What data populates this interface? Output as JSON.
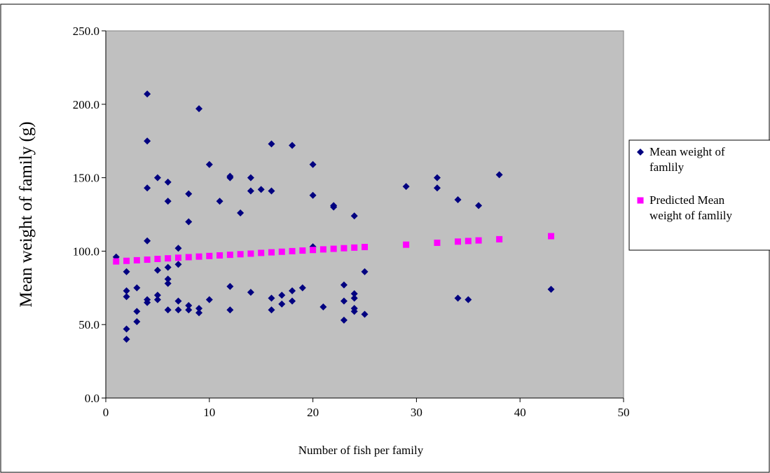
{
  "chart_data": {
    "type": "scatter",
    "title": "",
    "xlabel": "Number of fish per family",
    "ylabel": "Mean weight of family (g)",
    "xlim": [
      0,
      50
    ],
    "ylim": [
      0,
      250
    ],
    "xticks": [
      "0",
      "10",
      "20",
      "30",
      "40",
      "50"
    ],
    "yticks": [
      "0.0",
      "50.0",
      "100.0",
      "150.0",
      "200.0",
      "250.0"
    ],
    "grid": false,
    "legend": "right",
    "plot_background": "#c0c0c0",
    "series": [
      {
        "name": "Mean weight of famlily",
        "name_lines": [
          "Mean weight of",
          "famlily"
        ],
        "marker": "diamond",
        "color": "#000080",
        "points": [
          [
            1,
            96
          ],
          [
            2,
            86
          ],
          [
            2,
            73
          ],
          [
            2,
            69
          ],
          [
            2,
            47
          ],
          [
            2,
            40
          ],
          [
            3,
            75
          ],
          [
            3,
            59
          ],
          [
            3,
            52
          ],
          [
            4,
            207
          ],
          [
            4,
            175
          ],
          [
            4,
            143
          ],
          [
            4,
            107
          ],
          [
            4,
            67
          ],
          [
            4,
            65
          ],
          [
            5,
            150
          ],
          [
            5,
            87
          ],
          [
            5,
            70
          ],
          [
            5,
            67
          ],
          [
            6,
            147
          ],
          [
            6,
            134
          ],
          [
            6,
            89
          ],
          [
            6,
            81
          ],
          [
            6,
            78
          ],
          [
            6,
            60
          ],
          [
            7,
            102
          ],
          [
            7,
            91
          ],
          [
            7,
            66
          ],
          [
            7,
            60
          ],
          [
            8,
            139
          ],
          [
            8,
            120
          ],
          [
            8,
            63
          ],
          [
            8,
            60
          ],
          [
            9,
            197
          ],
          [
            9,
            61
          ],
          [
            9,
            58
          ],
          [
            10,
            159
          ],
          [
            10,
            67
          ],
          [
            11,
            134
          ],
          [
            12,
            151
          ],
          [
            12,
            150
          ],
          [
            12,
            76
          ],
          [
            12,
            60
          ],
          [
            13,
            126
          ],
          [
            14,
            150
          ],
          [
            14,
            141
          ],
          [
            14,
            72
          ],
          [
            15,
            142
          ],
          [
            16,
            173
          ],
          [
            16,
            141
          ],
          [
            16,
            68
          ],
          [
            16,
            60
          ],
          [
            17,
            70
          ],
          [
            17,
            64
          ],
          [
            18,
            172
          ],
          [
            18,
            73
          ],
          [
            18,
            66
          ],
          [
            19,
            75
          ],
          [
            20,
            159
          ],
          [
            20,
            138
          ],
          [
            20,
            103
          ],
          [
            21,
            62
          ],
          [
            22,
            131
          ],
          [
            22,
            130
          ],
          [
            23,
            77
          ],
          [
            23,
            66
          ],
          [
            23,
            53
          ],
          [
            24,
            124
          ],
          [
            24,
            71
          ],
          [
            24,
            68
          ],
          [
            24,
            61
          ],
          [
            24,
            59
          ],
          [
            25,
            86
          ],
          [
            25,
            57
          ],
          [
            29,
            144
          ],
          [
            32,
            150
          ],
          [
            32,
            143
          ],
          [
            34,
            135
          ],
          [
            34,
            68
          ],
          [
            35,
            67
          ],
          [
            36,
            131
          ],
          [
            38,
            152
          ],
          [
            43,
            74
          ]
        ]
      },
      {
        "name": "Predicted Mean weight of famlily",
        "name_lines": [
          "Predicted Mean",
          "weight of famlily"
        ],
        "marker": "square",
        "color": "#ff00ff",
        "points": [
          [
            1,
            93
          ],
          [
            2,
            93.4
          ],
          [
            3,
            93.8
          ],
          [
            4,
            94.2
          ],
          [
            5,
            94.7
          ],
          [
            6,
            95.1
          ],
          [
            7,
            95.5
          ],
          [
            8,
            95.9
          ],
          [
            9,
            96.3
          ],
          [
            10,
            96.7
          ],
          [
            11,
            97.1
          ],
          [
            12,
            97.5
          ],
          [
            13,
            97.9
          ],
          [
            14,
            98.3
          ],
          [
            15,
            98.8
          ],
          [
            16,
            99.2
          ],
          [
            17,
            99.6
          ],
          [
            18,
            100
          ],
          [
            19,
            100.4
          ],
          [
            20,
            100.8
          ],
          [
            21,
            101.2
          ],
          [
            22,
            101.6
          ],
          [
            23,
            102
          ],
          [
            24,
            102.4
          ],
          [
            25,
            102.8
          ],
          [
            29,
            104.4
          ],
          [
            32,
            105.7
          ],
          [
            34,
            106.5
          ],
          [
            35,
            106.9
          ],
          [
            36,
            107.3
          ],
          [
            38,
            108.1
          ],
          [
            43,
            110.2
          ]
        ]
      }
    ]
  }
}
